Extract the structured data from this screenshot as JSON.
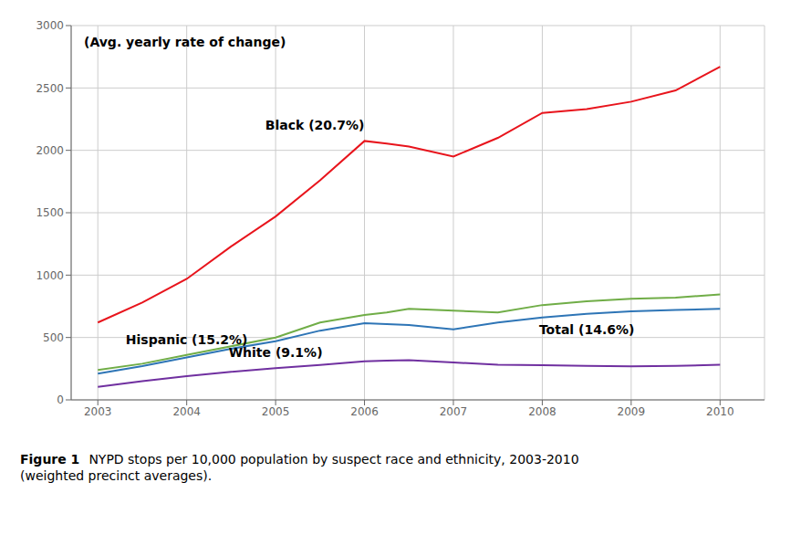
{
  "chart_data": {
    "type": "line",
    "title": "Figure 1",
    "subtitle": "NYPD stops per 10,000 population by suspect race and ethnicity, 2003-2010\n(weighted precinct averages).",
    "annotations": [
      "(Avg. yearly rate of change)"
    ],
    "x": [
      2003,
      2003.5,
      2004,
      2004.5,
      2005,
      2005.5,
      2006,
      2006.25,
      2006.5,
      2007,
      2007.5,
      2008,
      2008.5,
      2009,
      2009.5,
      2010
    ],
    "series": [
      {
        "name": "Black (20.7%)",
        "color": "#e8141c",
        "values": [
          620,
          780,
          970,
          1230,
          1470,
          1760,
          2075,
          2055,
          2030,
          1950,
          2100,
          2300,
          2330,
          2390,
          2480,
          2670
        ]
      },
      {
        "name": "Hispanic (15.2%)",
        "color": "#70ad47",
        "values": [
          240,
          290,
          360,
          430,
          500,
          620,
          680,
          700,
          730,
          715,
          700,
          760,
          790,
          810,
          820,
          845
        ]
      },
      {
        "name": "Total (14.6%)",
        "color": "#2e75b6",
        "values": [
          210,
          270,
          340,
          410,
          470,
          555,
          615,
          608,
          600,
          565,
          620,
          660,
          690,
          710,
          720,
          730
        ]
      },
      {
        "name": "White (9.1%)",
        "color": "#7030a0",
        "values": [
          105,
          150,
          190,
          225,
          255,
          280,
          310,
          315,
          318,
          300,
          282,
          278,
          272,
          268,
          272,
          282
        ]
      }
    ],
    "xlim": [
      2002.7,
      2010.5
    ],
    "xticks": [
      2003,
      2004,
      2005,
      2006,
      2007,
      2008,
      2009,
      2010
    ],
    "ylim": [
      0,
      3000
    ],
    "yticks": [
      0,
      500,
      1000,
      1500,
      2000,
      2500,
      3000
    ],
    "grid": true
  }
}
